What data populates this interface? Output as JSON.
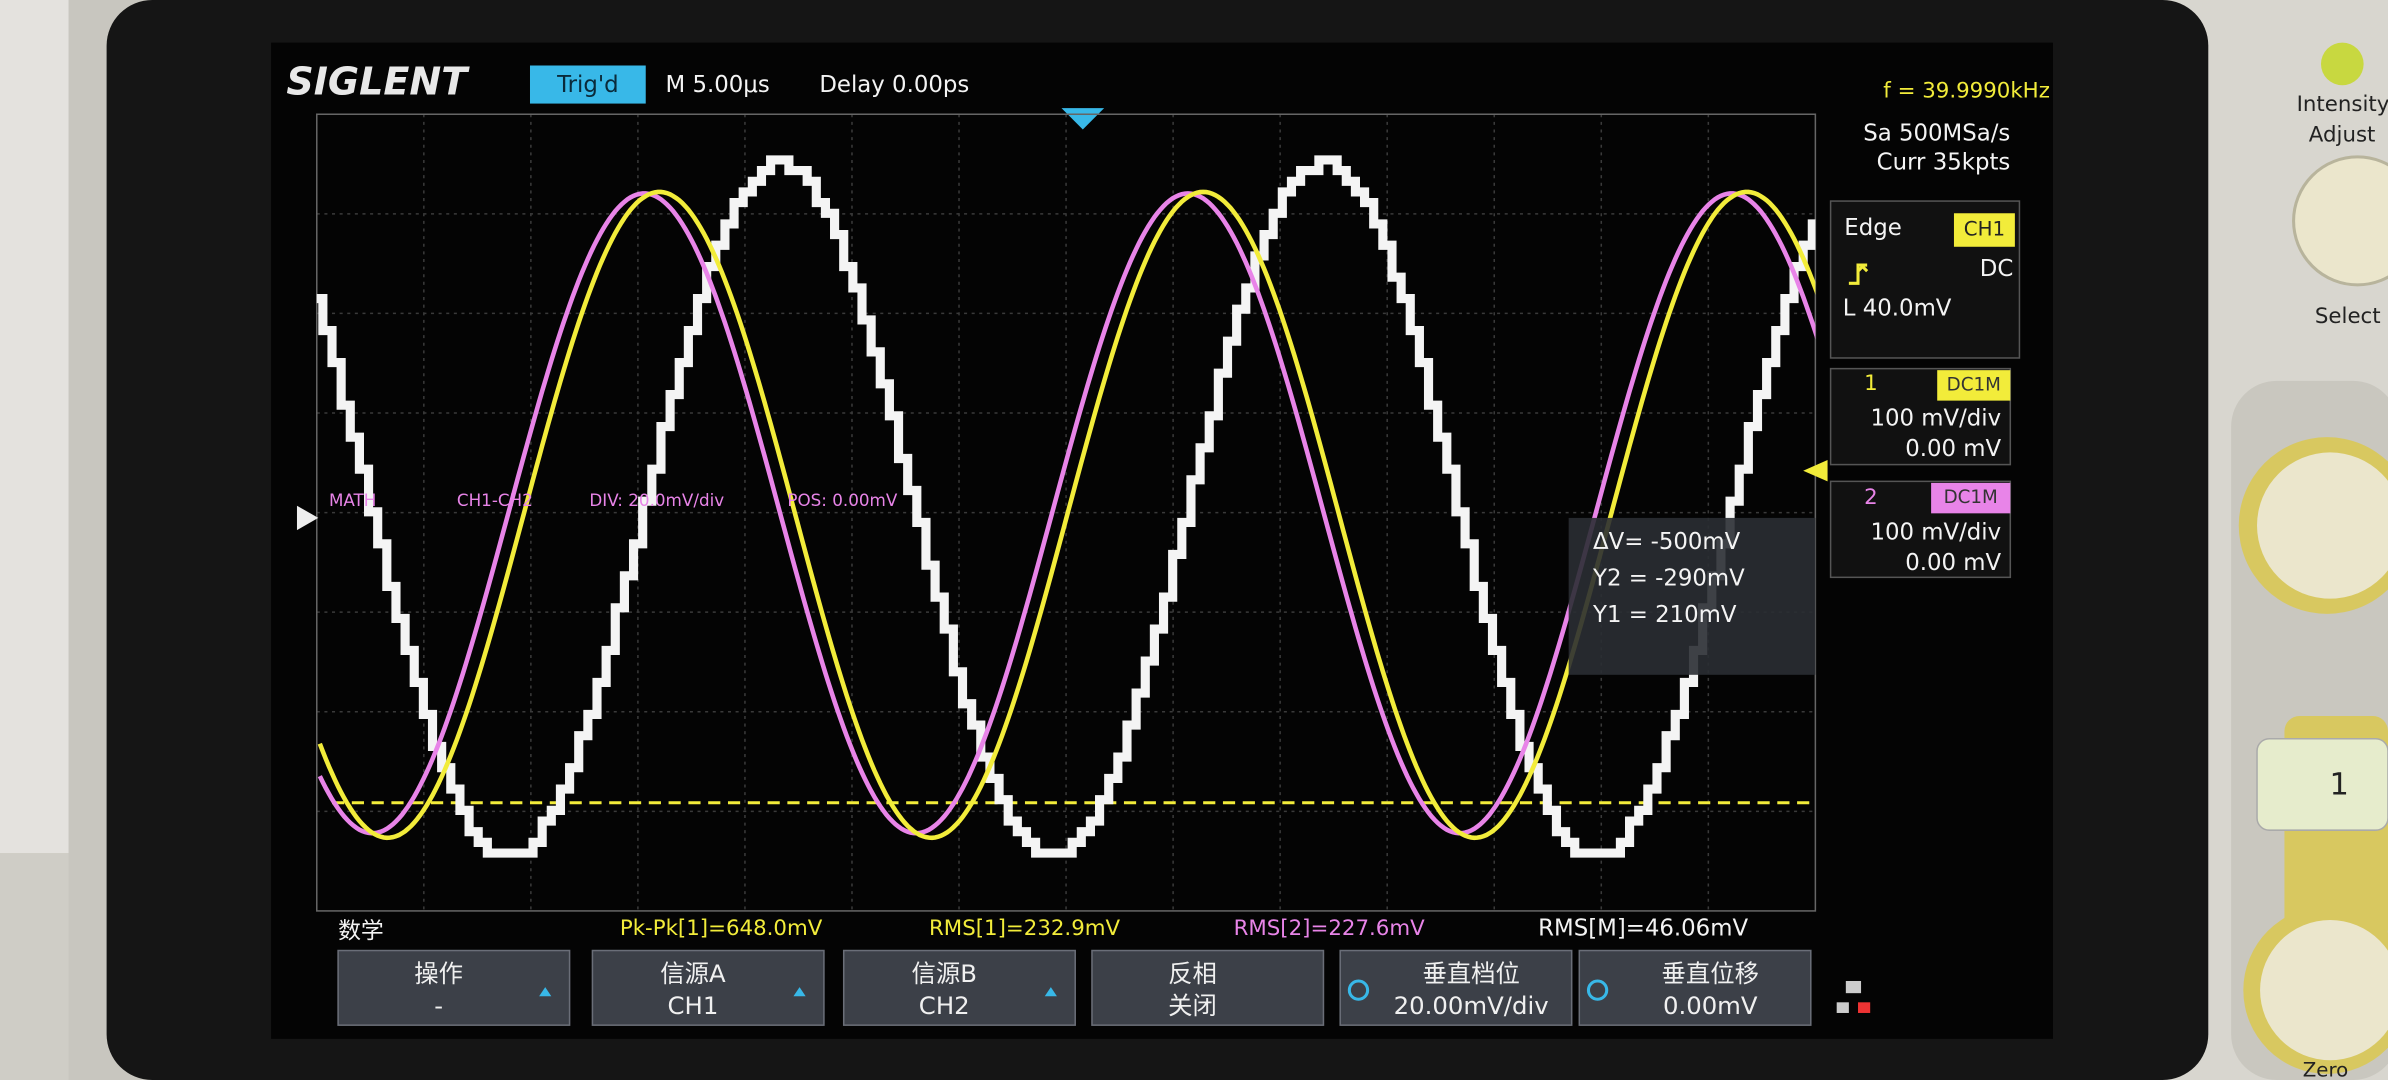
{
  "header": {
    "brand": "SIGLENT",
    "status": "Trig'd",
    "timebase": "M 5.00μs",
    "delay": "Delay 0.00ps",
    "frequency": "f = 39.9990kHz"
  },
  "acquisition": {
    "sample_rate": "Sa 500MSa/s",
    "memory": "Curr 35kpts"
  },
  "trigger": {
    "type": "Edge",
    "source": "CH1",
    "coupling": "DC",
    "level": "L  40.0mV"
  },
  "channels": [
    {
      "number": "1",
      "coupling": "DC1M",
      "scale": "100 mV/div",
      "offset": "0.00 mV"
    },
    {
      "number": "2",
      "coupling": "DC1M",
      "scale": "100 mV/div",
      "offset": "0.00 mV"
    }
  ],
  "math_info": {
    "label": "MATH",
    "expression": "CH1-CH2",
    "division": "DIV: 20.0mV/div",
    "position": "POS: 0.00mV"
  },
  "cursors": {
    "delta": "ΔV= -500mV",
    "y2": "Y2 = -290mV",
    "y1": "Y1 = 210mV"
  },
  "measurements": [
    "Pk-Pk[1]=648.0mV",
    "RMS[1]=232.9mV",
    "RMS[2]=227.6mV",
    "RMS[M]=46.06mV"
  ],
  "menu": {
    "title": "数学",
    "softkeys": [
      {
        "label": "操作",
        "value": "-"
      },
      {
        "label": "信源A",
        "value": "CH1"
      },
      {
        "label": "信源B",
        "value": "CH2"
      },
      {
        "label": "反相",
        "value": "关闭"
      },
      {
        "label": "垂直档位",
        "value": "20.00mV/div"
      },
      {
        "label": "垂直位移",
        "value": "0.00mV"
      }
    ]
  },
  "panel": {
    "intensity": "Intensity",
    "adjust": "Adjust",
    "select": "Select",
    "button": "1",
    "zero": "Zero"
  }
}
